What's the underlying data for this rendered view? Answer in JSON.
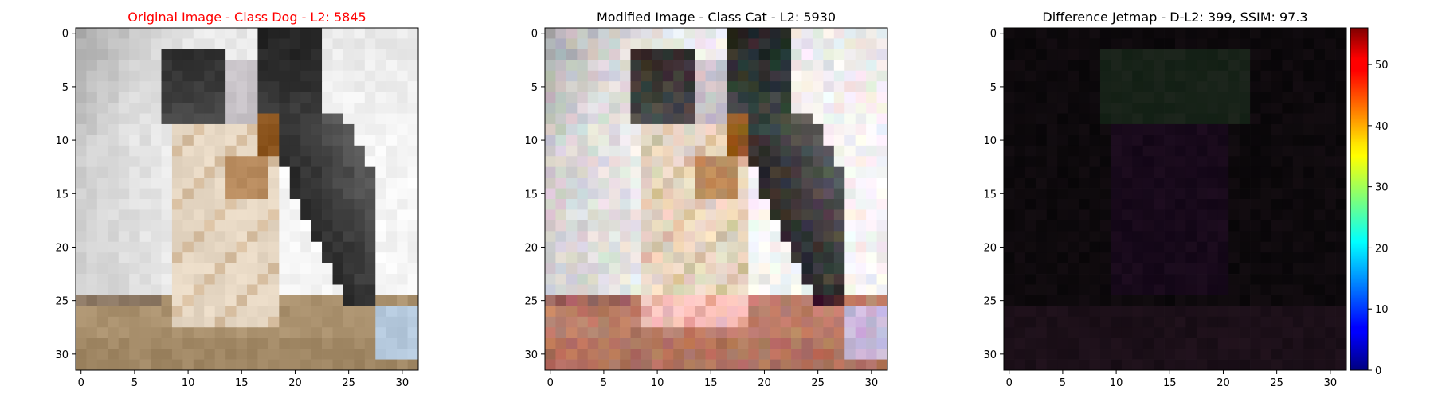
{
  "chart_data": [
    {
      "type": "heatmap",
      "title": "Original Image - Class Dog - L2: 5845",
      "title_color": "#ff0000",
      "content": "photo",
      "image_resolution": [
        32,
        32
      ],
      "xticks": [
        0,
        5,
        10,
        15,
        20,
        25,
        30
      ],
      "yticks": [
        0,
        5,
        10,
        15,
        20,
        25,
        30
      ],
      "xlim": [
        -0.5,
        31.5
      ],
      "ylim": [
        31.5,
        -0.5
      ]
    },
    {
      "type": "heatmap",
      "title": "Modified Image - Class Cat - L2: 5930",
      "title_color": "#000000",
      "content": "photo-tinted",
      "image_resolution": [
        32,
        32
      ],
      "xticks": [
        0,
        5,
        10,
        15,
        20,
        25,
        30
      ],
      "yticks": [
        0,
        5,
        10,
        15,
        20,
        25,
        30
      ],
      "xlim": [
        -0.5,
        31.5
      ],
      "ylim": [
        31.5,
        -0.5
      ]
    },
    {
      "type": "heatmap",
      "title": "Difference Jetmap - D-L2: 399, SSIM: 97.3",
      "title_color": "#000000",
      "content": "difference",
      "image_resolution": [
        32,
        32
      ],
      "xticks": [
        0,
        5,
        10,
        15,
        20,
        25,
        30
      ],
      "yticks": [
        0,
        5,
        10,
        15,
        20,
        25,
        30
      ],
      "xlim": [
        -0.5,
        31.5
      ],
      "ylim": [
        31.5,
        -0.5
      ],
      "colorbar": {
        "colormap": "jet",
        "min": 0,
        "max": 56,
        "ticks": [
          0,
          10,
          20,
          30,
          40,
          50
        ]
      }
    }
  ]
}
